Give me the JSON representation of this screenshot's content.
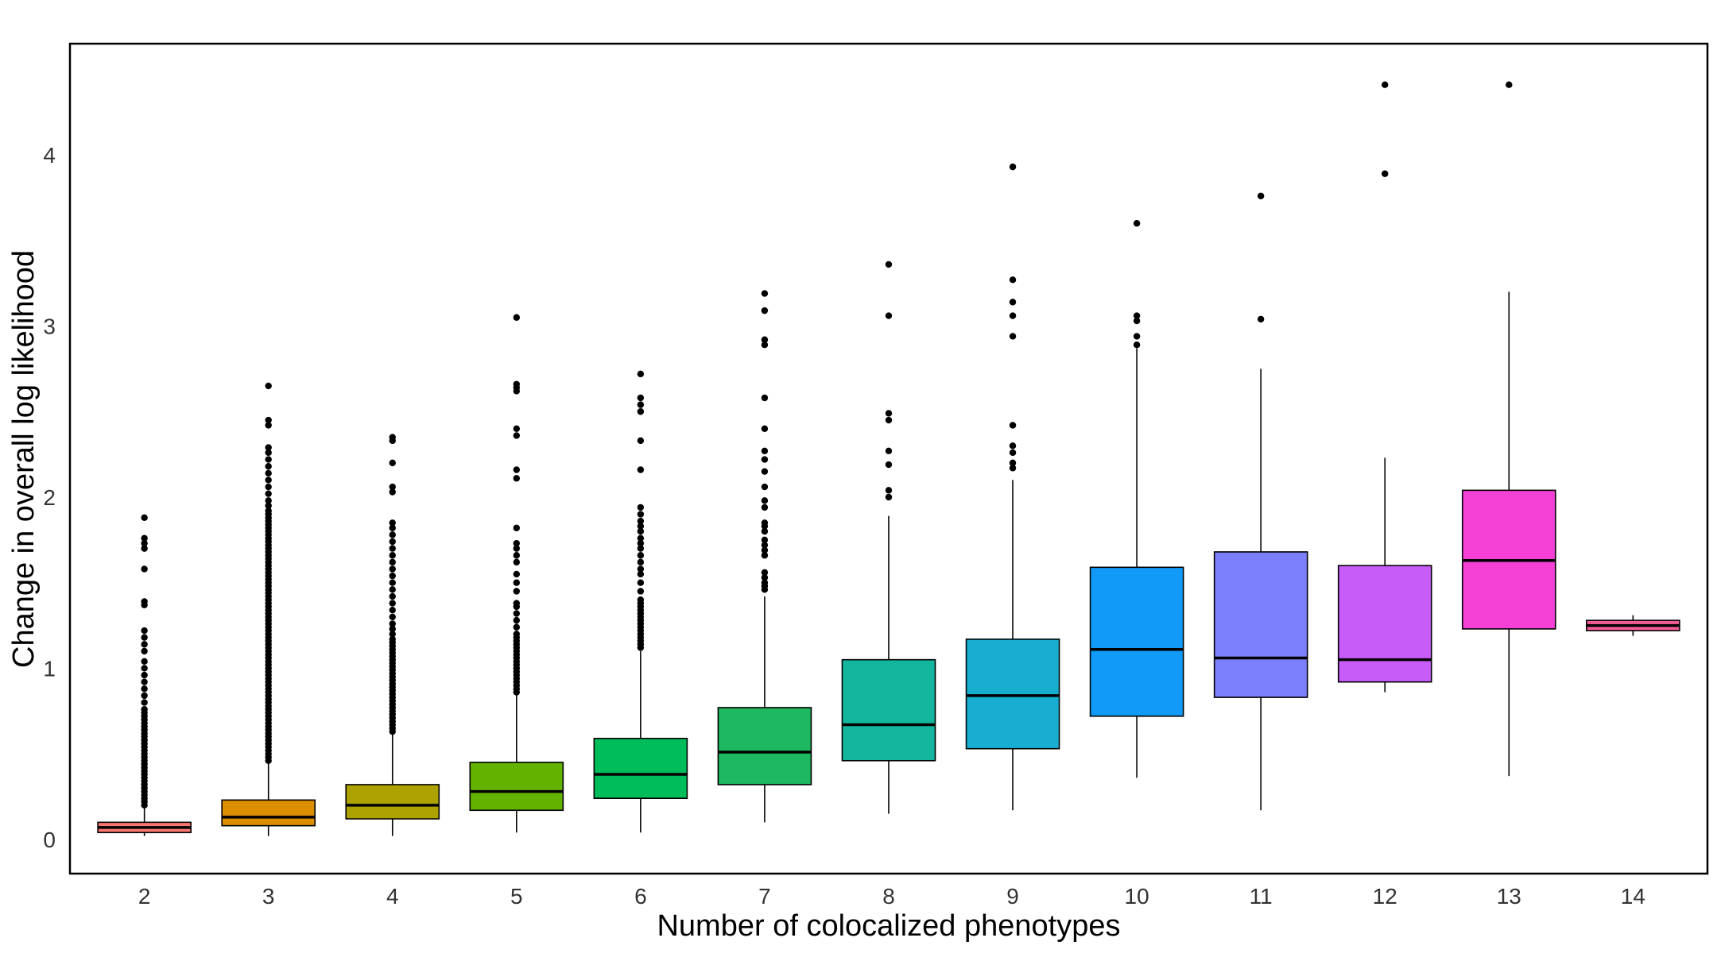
{
  "chart_data": {
    "type": "boxplot",
    "title": "",
    "xlabel": "Number of colocalized phenotypes",
    "ylabel": "Change in overall log likelihood",
    "ylim": [
      -0.2,
      4.65
    ],
    "yticks": [
      "0",
      "1",
      "2",
      "3",
      "4"
    ],
    "categories": [
      "2",
      "3",
      "4",
      "5",
      "6",
      "7",
      "8",
      "9",
      "10",
      "11",
      "12",
      "13",
      "14"
    ],
    "grid": false,
    "legend": "none",
    "series": [
      {
        "category": "2",
        "color": "#F8766D",
        "min": 0.02,
        "q1": 0.04,
        "median": 0.07,
        "q3": 0.1,
        "max": 0.19,
        "outliers": [
          0.2,
          0.22,
          0.24,
          0.26,
          0.28,
          0.3,
          0.32,
          0.34,
          0.36,
          0.38,
          0.4,
          0.42,
          0.44,
          0.46,
          0.48,
          0.5,
          0.52,
          0.54,
          0.56,
          0.58,
          0.6,
          0.62,
          0.64,
          0.66,
          0.68,
          0.7,
          0.72,
          0.74,
          0.76,
          0.8,
          0.84,
          0.88,
          0.92,
          0.96,
          1.0,
          1.04,
          1.1,
          1.14,
          1.18,
          1.22,
          1.37,
          1.39,
          1.58,
          1.7,
          1.73,
          1.76,
          1.88
        ]
      },
      {
        "category": "3",
        "color": "#DB8E00",
        "min": 0.02,
        "q1": 0.08,
        "median": 0.13,
        "q3": 0.23,
        "max": 0.45,
        "outliers": [
          0.46,
          0.48,
          0.5,
          0.52,
          0.54,
          0.56,
          0.58,
          0.6,
          0.62,
          0.64,
          0.66,
          0.68,
          0.7,
          0.72,
          0.74,
          0.76,
          0.78,
          0.8,
          0.82,
          0.84,
          0.86,
          0.88,
          0.9,
          0.92,
          0.94,
          0.96,
          0.98,
          1.0,
          1.02,
          1.04,
          1.06,
          1.08,
          1.1,
          1.12,
          1.14,
          1.16,
          1.18,
          1.2,
          1.22,
          1.24,
          1.26,
          1.28,
          1.3,
          1.32,
          1.34,
          1.36,
          1.38,
          1.4,
          1.42,
          1.44,
          1.46,
          1.48,
          1.5,
          1.52,
          1.54,
          1.56,
          1.58,
          1.6,
          1.62,
          1.64,
          1.66,
          1.68,
          1.7,
          1.72,
          1.74,
          1.76,
          1.78,
          1.8,
          1.82,
          1.84,
          1.86,
          1.88,
          1.9,
          1.92,
          1.95,
          1.98,
          2.02,
          2.06,
          2.1,
          2.14,
          2.18,
          2.22,
          2.26,
          2.29,
          2.42,
          2.45,
          2.65
        ]
      },
      {
        "category": "4",
        "color": "#AEA200",
        "min": 0.02,
        "q1": 0.12,
        "median": 0.2,
        "q3": 0.32,
        "max": 0.62,
        "outliers": [
          0.63,
          0.65,
          0.67,
          0.69,
          0.71,
          0.73,
          0.75,
          0.77,
          0.79,
          0.81,
          0.83,
          0.85,
          0.87,
          0.89,
          0.91,
          0.93,
          0.95,
          0.97,
          0.99,
          1.01,
          1.03,
          1.05,
          1.07,
          1.09,
          1.11,
          1.13,
          1.15,
          1.17,
          1.2,
          1.23,
          1.26,
          1.3,
          1.34,
          1.38,
          1.42,
          1.46,
          1.5,
          1.54,
          1.58,
          1.62,
          1.66,
          1.7,
          1.74,
          1.78,
          1.82,
          1.85,
          2.03,
          2.06,
          2.2,
          2.33,
          2.35
        ]
      },
      {
        "category": "5",
        "color": "#64B200",
        "min": 0.04,
        "q1": 0.17,
        "median": 0.28,
        "q3": 0.45,
        "max": 0.85,
        "outliers": [
          0.86,
          0.88,
          0.9,
          0.92,
          0.94,
          0.96,
          0.98,
          1.0,
          1.02,
          1.04,
          1.06,
          1.08,
          1.1,
          1.12,
          1.14,
          1.16,
          1.18,
          1.2,
          1.24,
          1.28,
          1.32,
          1.36,
          1.38,
          1.45,
          1.5,
          1.55,
          1.62,
          1.66,
          1.7,
          1.73,
          1.82,
          2.11,
          2.16,
          2.36,
          2.4,
          2.62,
          2.64,
          2.66,
          3.05
        ]
      },
      {
        "category": "6",
        "color": "#00BD5C",
        "min": 0.04,
        "q1": 0.24,
        "median": 0.38,
        "q3": 0.59,
        "max": 1.1,
        "outliers": [
          1.12,
          1.14,
          1.16,
          1.18,
          1.2,
          1.22,
          1.24,
          1.26,
          1.28,
          1.3,
          1.32,
          1.34,
          1.36,
          1.38,
          1.4,
          1.45,
          1.5,
          1.55,
          1.58,
          1.62,
          1.66,
          1.7,
          1.73,
          1.76,
          1.8,
          1.83,
          1.86,
          1.9,
          1.94,
          2.16,
          2.33,
          2.5,
          2.54,
          2.58,
          2.72
        ]
      },
      {
        "category": "7",
        "color": "#1DB860",
        "min": 0.1,
        "q1": 0.32,
        "median": 0.51,
        "q3": 0.77,
        "max": 1.42,
        "outliers": [
          1.46,
          1.48,
          1.5,
          1.53,
          1.56,
          1.66,
          1.69,
          1.72,
          1.75,
          1.8,
          1.83,
          1.85,
          1.94,
          1.98,
          2.06,
          2.15,
          2.22,
          2.27,
          2.4,
          2.58,
          2.89,
          2.92,
          3.09,
          3.19
        ]
      },
      {
        "category": "8",
        "color": "#14B79E",
        "min": 0.15,
        "q1": 0.46,
        "median": 0.67,
        "q3": 1.05,
        "max": 1.89,
        "outliers": [
          2.0,
          2.04,
          2.19,
          2.27,
          2.45,
          2.49,
          3.06,
          3.36
        ]
      },
      {
        "category": "9",
        "color": "#18AED0",
        "min": 0.17,
        "q1": 0.53,
        "median": 0.84,
        "q3": 1.17,
        "max": 2.1,
        "outliers": [
          2.17,
          2.2,
          2.26,
          2.3,
          2.42,
          2.94,
          3.06,
          3.14,
          3.27,
          3.93
        ]
      },
      {
        "category": "10",
        "color": "#119AF8",
        "min": 0.36,
        "q1": 0.72,
        "median": 1.11,
        "q3": 1.59,
        "max": 2.87,
        "outliers": [
          2.89,
          2.94,
          3.03,
          3.06,
          3.6
        ]
      },
      {
        "category": "11",
        "color": "#7B7FF9",
        "min": 0.17,
        "q1": 0.83,
        "median": 1.06,
        "q3": 1.68,
        "max": 2.75,
        "outliers": [
          3.04,
          3.76
        ]
      },
      {
        "category": "12",
        "color": "#C85CF9",
        "min": 0.86,
        "q1": 0.92,
        "median": 1.05,
        "q3": 1.6,
        "max": 2.23,
        "outliers": [
          3.89,
          4.41
        ]
      },
      {
        "category": "13",
        "color": "#F440D5",
        "min": 0.37,
        "q1": 1.23,
        "median": 1.63,
        "q3": 2.04,
        "max": 3.2,
        "outliers": [
          4.41
        ]
      },
      {
        "category": "14",
        "color": "#F45B97",
        "min": 1.19,
        "q1": 1.22,
        "median": 1.25,
        "q3": 1.28,
        "max": 1.31,
        "outliers": []
      }
    ]
  }
}
